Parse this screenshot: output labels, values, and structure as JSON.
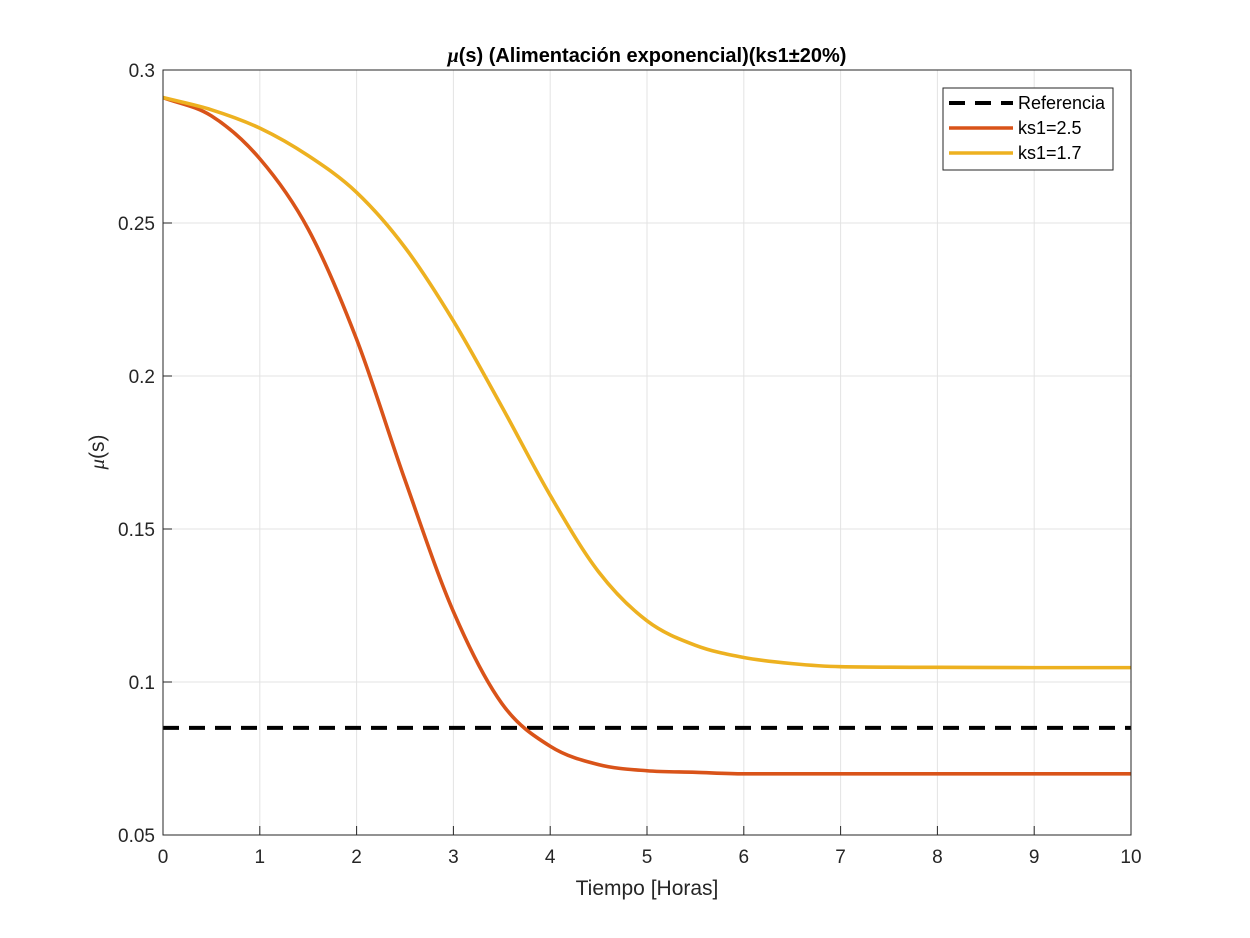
{
  "chart_data": {
    "type": "line",
    "title_mu": "μ",
    "title_rest": "(s) (Alimentación exponencial)(ks1±20%)",
    "xlabel": "Tiempo [Horas]",
    "ylabel_mu": "μ",
    "ylabel_rest": "(s)",
    "xlim": [
      0,
      10
    ],
    "ylim": [
      0.05,
      0.3
    ],
    "xticks": [
      "0",
      "1",
      "2",
      "3",
      "4",
      "5",
      "6",
      "7",
      "8",
      "9",
      "10"
    ],
    "yticks": [
      "0.05",
      "0.1",
      "0.15",
      "0.2",
      "0.25",
      "0.3"
    ],
    "grid": true,
    "legend_position": "top-right",
    "series": [
      {
        "name": "Referencia",
        "color": "#000000",
        "style": "dashed",
        "x": [
          0,
          10
        ],
        "y": [
          0.085,
          0.085
        ]
      },
      {
        "name": "ks1=2.5",
        "color": "#D95319",
        "style": "solid",
        "x": [
          0,
          0.5,
          1,
          1.5,
          2,
          2.5,
          3,
          3.5,
          4,
          4.5,
          5,
          5.5,
          6,
          7,
          8,
          9,
          10
        ],
        "y": [
          0.291,
          0.285,
          0.271,
          0.248,
          0.212,
          0.166,
          0.123,
          0.093,
          0.079,
          0.073,
          0.071,
          0.0705,
          0.07,
          0.07,
          0.07,
          0.07,
          0.07
        ]
      },
      {
        "name": "ks1=1.7",
        "color": "#EDB120",
        "style": "solid",
        "x": [
          0,
          0.5,
          1,
          1.5,
          2,
          2.5,
          3,
          3.5,
          4,
          4.5,
          5,
          5.5,
          6,
          6.5,
          7,
          8,
          9,
          10
        ],
        "y": [
          0.291,
          0.287,
          0.281,
          0.272,
          0.26,
          0.242,
          0.218,
          0.19,
          0.161,
          0.136,
          0.12,
          0.112,
          0.108,
          0.106,
          0.105,
          0.1048,
          0.1047,
          0.1047
        ]
      }
    ]
  }
}
